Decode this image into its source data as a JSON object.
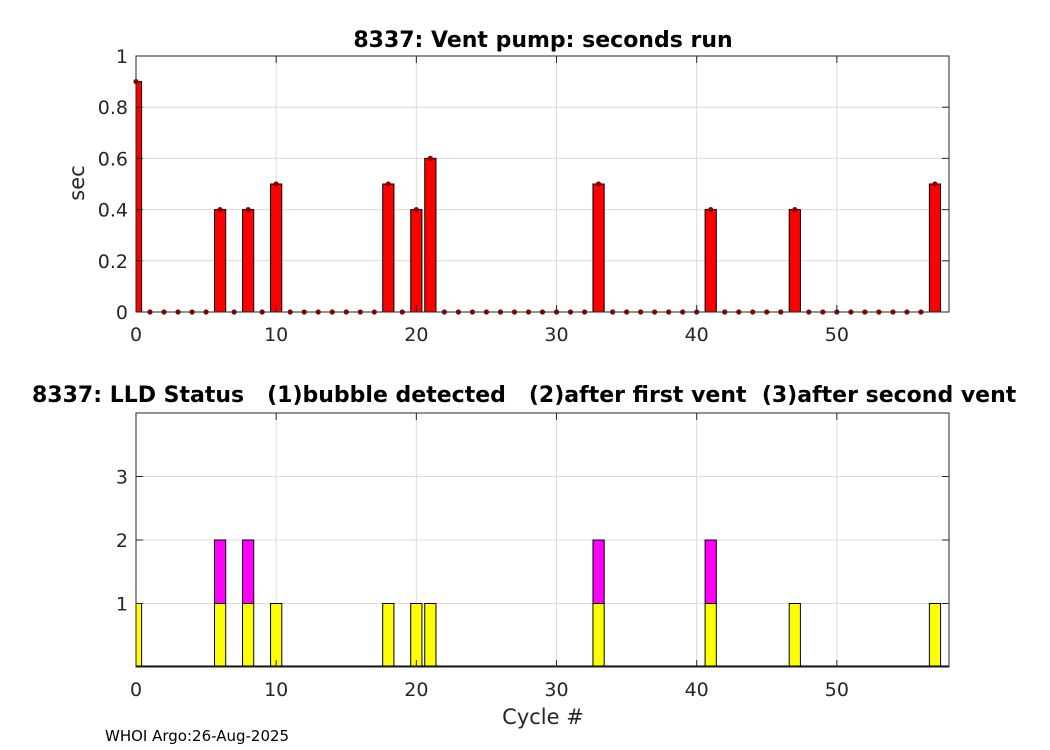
{
  "footer": "WHOI Argo:26-Aug-2025",
  "colors": {
    "vent_bar": "#ff0000",
    "vent_marker": "#8b0000",
    "lld_state1": "#ffff00",
    "lld_state2": "#ff00ff",
    "grid": "#dcdcdc",
    "axis": "#262626"
  },
  "chart_data": [
    {
      "type": "bar",
      "title": "8337: Vent pump: seconds run",
      "xlabel": "",
      "ylabel": "sec",
      "xlim": [
        0,
        58
      ],
      "ylim": [
        0,
        1
      ],
      "xticks": [
        0,
        10,
        20,
        30,
        40,
        50
      ],
      "yticks": [
        0,
        0.2,
        0.4,
        0.6,
        0.8,
        1
      ],
      "ytick_labels": [
        "0",
        "0.2",
        "0.4",
        "0.6",
        "0.8",
        "1"
      ],
      "grid": true,
      "x": [
        0,
        1,
        2,
        3,
        4,
        5,
        6,
        7,
        8,
        9,
        10,
        11,
        12,
        13,
        14,
        15,
        16,
        17,
        18,
        19,
        20,
        21,
        22,
        23,
        24,
        25,
        26,
        27,
        28,
        29,
        30,
        31,
        32,
        33,
        34,
        35,
        36,
        37,
        38,
        39,
        40,
        41,
        42,
        43,
        44,
        45,
        46,
        47,
        48,
        49,
        50,
        51,
        52,
        53,
        54,
        55,
        56,
        57
      ],
      "values": [
        0.9,
        0,
        0,
        0,
        0,
        0,
        0.4,
        0,
        0.4,
        0,
        0.5,
        0,
        0,
        0,
        0,
        0,
        0,
        0,
        0.5,
        0,
        0.4,
        0.6,
        0,
        0,
        0,
        0,
        0,
        0,
        0,
        0,
        0,
        0,
        0,
        0.5,
        0,
        0,
        0,
        0,
        0,
        0,
        0,
        0.4,
        0,
        0,
        0,
        0,
        0,
        0.4,
        0,
        0,
        0,
        0,
        0,
        0,
        0,
        0,
        0,
        0.5
      ]
    },
    {
      "type": "bar",
      "title": "8337: LLD Status   (1)bubble detected   (2)after first vent  (3)after second vent",
      "xlabel": "Cycle #",
      "ylabel": "",
      "xlim": [
        0,
        58
      ],
      "ylim": [
        0,
        4
      ],
      "xticks": [
        0,
        10,
        20,
        30,
        40,
        50
      ],
      "yticks": [
        1,
        2,
        3
      ],
      "ytick_labels": [
        "1",
        "2",
        "3"
      ],
      "grid": true,
      "x": [
        0,
        1,
        2,
        3,
        4,
        5,
        6,
        7,
        8,
        9,
        10,
        11,
        12,
        13,
        14,
        15,
        16,
        17,
        18,
        19,
        20,
        21,
        22,
        23,
        24,
        25,
        26,
        27,
        28,
        29,
        30,
        31,
        32,
        33,
        34,
        35,
        36,
        37,
        38,
        39,
        40,
        41,
        42,
        43,
        44,
        45,
        46,
        47,
        48,
        49,
        50,
        51,
        52,
        53,
        54,
        55,
        56,
        57
      ],
      "values": [
        1,
        0,
        0,
        0,
        0,
        0,
        2,
        0,
        2,
        0,
        1,
        0,
        0,
        0,
        0,
        0,
        0,
        0,
        1,
        0,
        1,
        1,
        0,
        0,
        0,
        0,
        0,
        0,
        0,
        0,
        0,
        0,
        0,
        2,
        0,
        0,
        0,
        0,
        0,
        0,
        0,
        2,
        0,
        0,
        0,
        0,
        0,
        1,
        0,
        0,
        0,
        0,
        0,
        0,
        0,
        0,
        0,
        1
      ]
    }
  ]
}
